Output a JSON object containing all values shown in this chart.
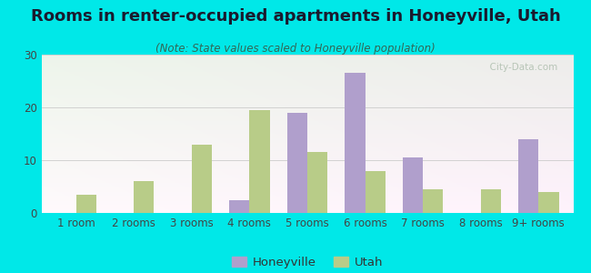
{
  "title": "Rooms in renter-occupied apartments in Honeyville, Utah",
  "subtitle": "(Note: State values scaled to Honeyville population)",
  "categories": [
    "1 room",
    "2 rooms",
    "3 rooms",
    "4 rooms",
    "5 rooms",
    "6 rooms",
    "7 rooms",
    "8 rooms",
    "9+ rooms"
  ],
  "honeyville": [
    0,
    0,
    0,
    2.5,
    19.0,
    26.5,
    10.5,
    0,
    14.0
  ],
  "utah": [
    3.5,
    6.0,
    13.0,
    19.5,
    11.5,
    8.0,
    4.5,
    4.5,
    4.0
  ],
  "honeyville_color": "#b09fcc",
  "utah_color": "#b8cc88",
  "background_outer": "#00e8e8",
  "ylim": [
    0,
    30
  ],
  "yticks": [
    0,
    10,
    20,
    30
  ],
  "bar_width": 0.35,
  "title_fontsize": 13,
  "subtitle_fontsize": 8.5,
  "tick_fontsize": 8.5,
  "legend_fontsize": 9.5
}
